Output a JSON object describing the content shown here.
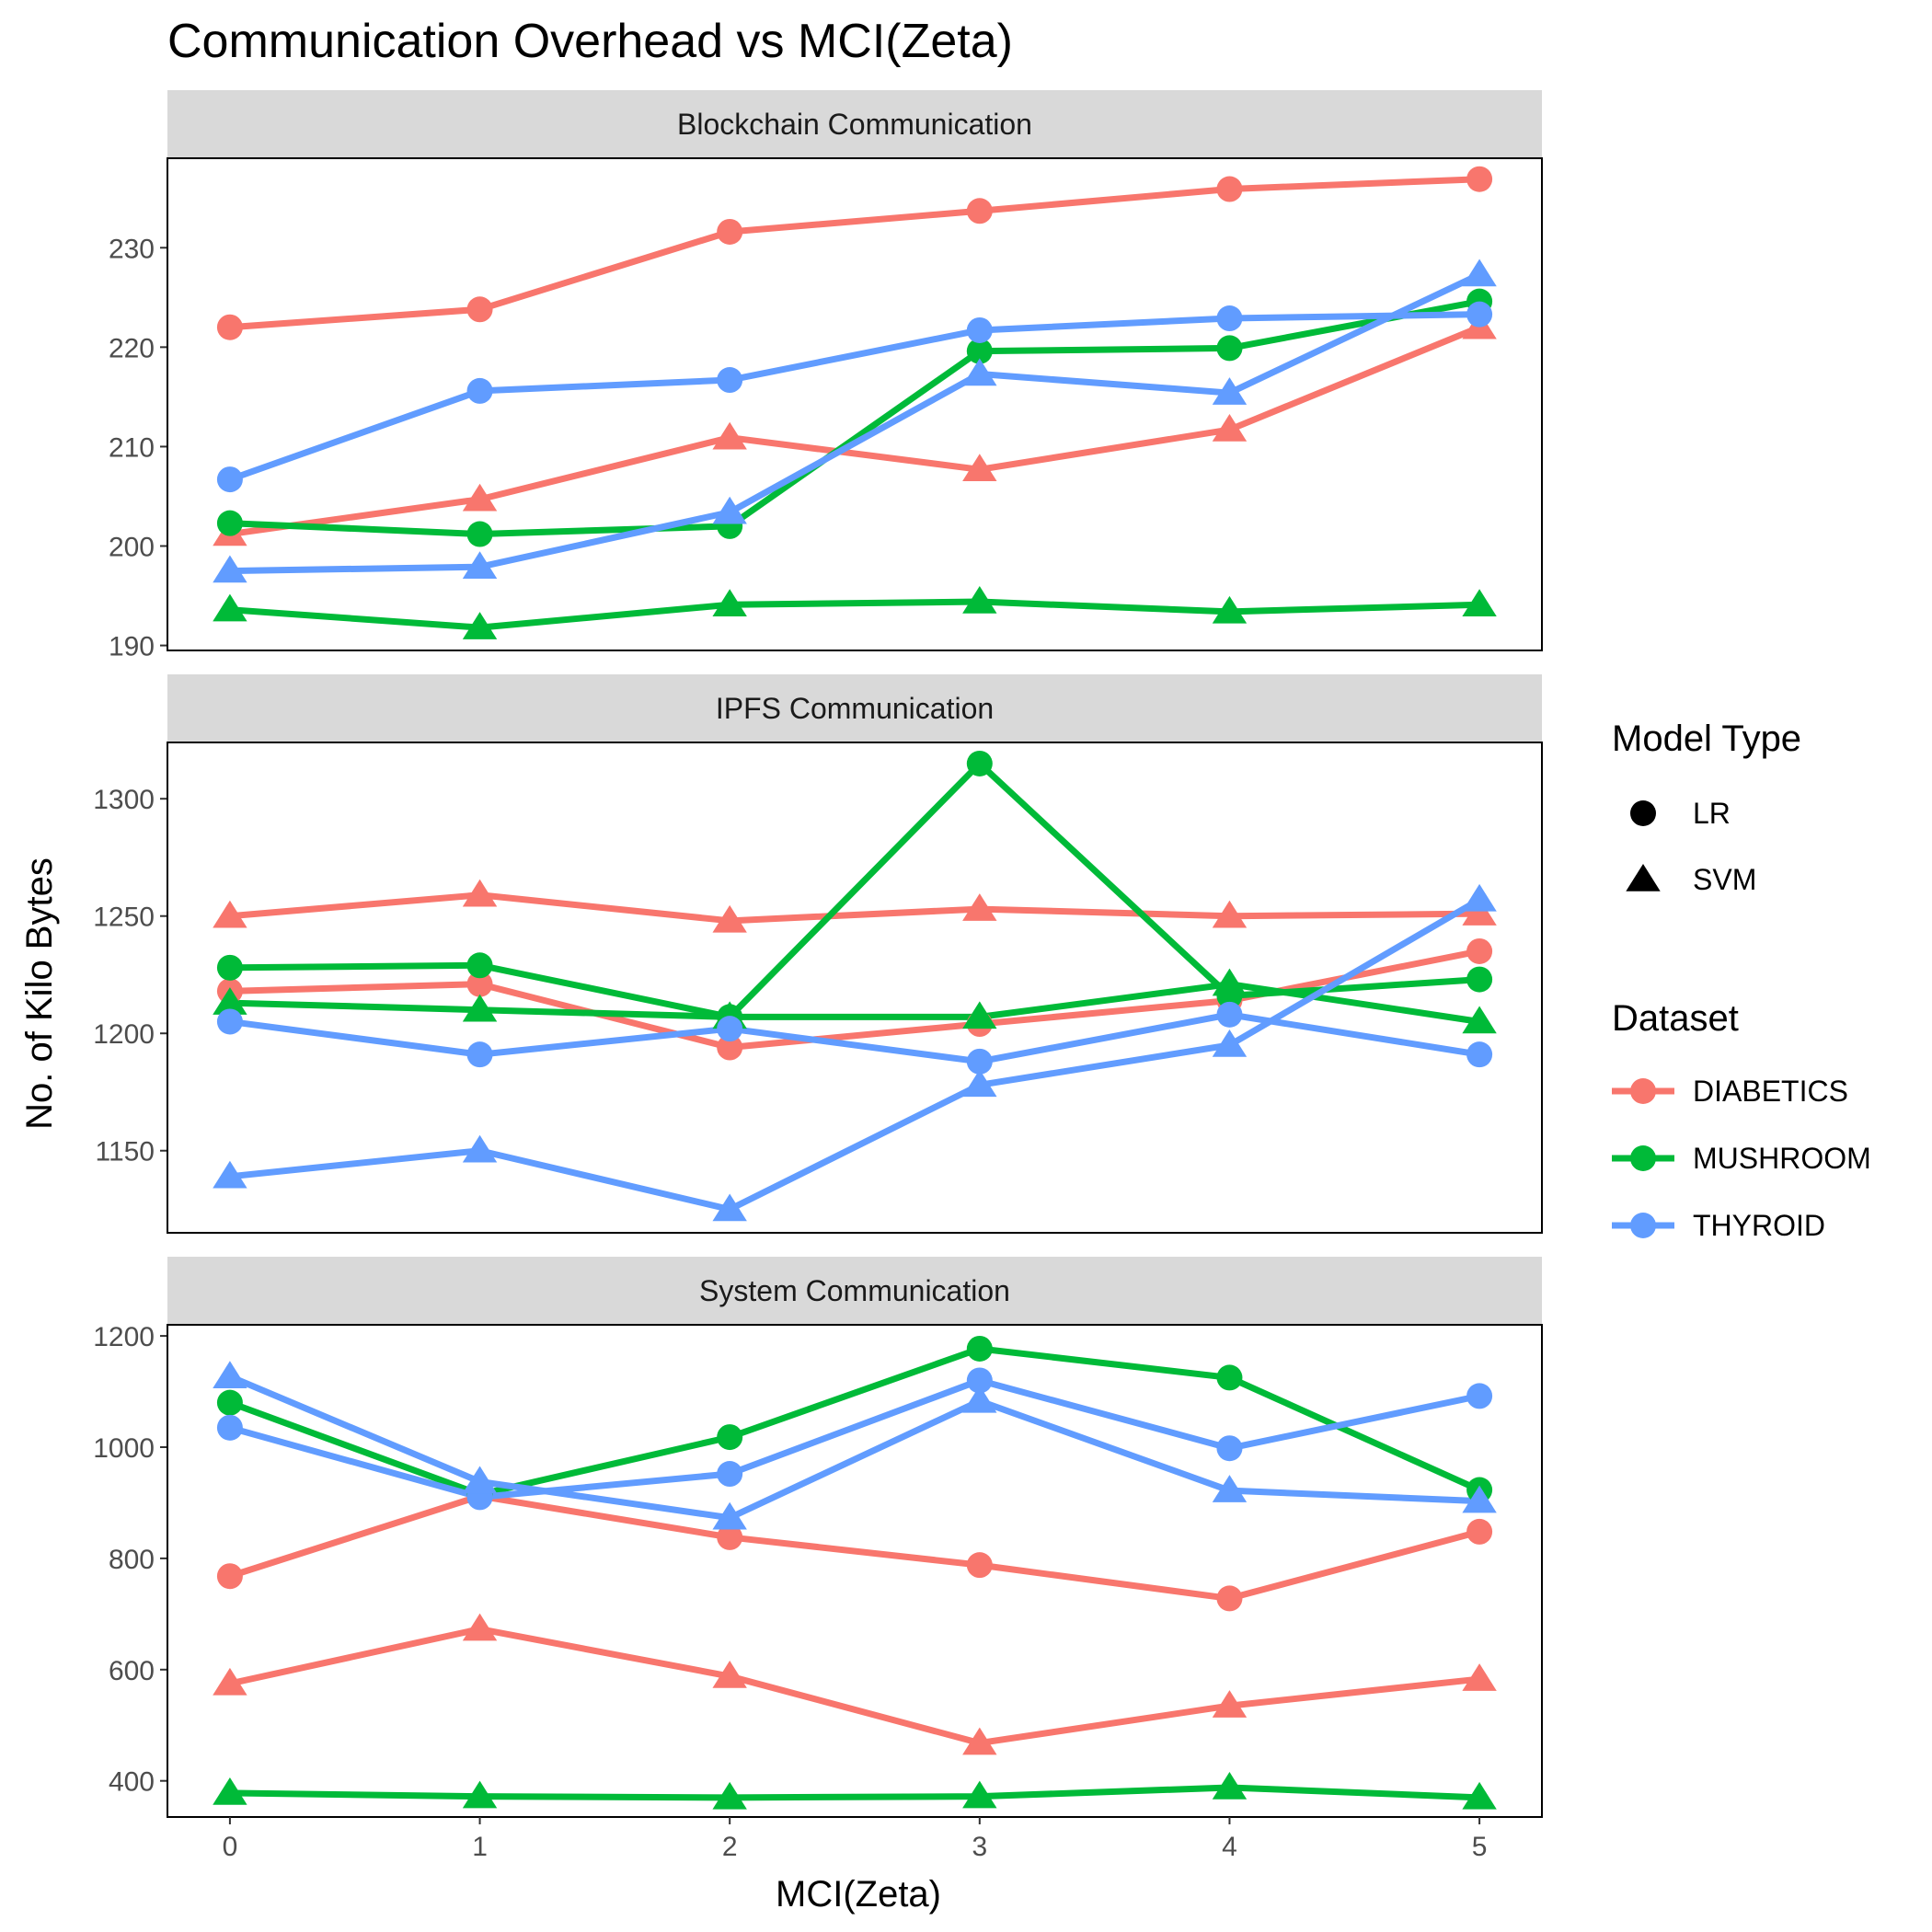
{
  "title": "Communication Overhead vs MCI(Zeta)",
  "xlabel": "MCI(Zeta)",
  "ylabel": "No. of Kilo Bytes",
  "legend": {
    "shape_title": "Model Type",
    "shape_items": [
      {
        "label": "LR",
        "shape": "circle"
      },
      {
        "label": "SVM",
        "shape": "triangle"
      }
    ],
    "color_title": "Dataset",
    "color_items": [
      {
        "label": "DIABETICS",
        "color": "#F8766D"
      },
      {
        "label": "MUSHROOM",
        "color": "#00BA38"
      },
      {
        "label": "THYROID",
        "color": "#619CFF"
      }
    ]
  },
  "colors": {
    "DIABETICS": "#F8766D",
    "MUSHROOM": "#00BA38",
    "THYROID": "#619CFF",
    "strip_bg": "#D9D9D9"
  },
  "chart_data": [
    {
      "type": "line",
      "facet": "Blockchain Communication",
      "x": [
        0,
        1,
        2,
        3,
        4,
        5
      ],
      "xticks": [
        "0",
        "1",
        "2",
        "3",
        "4",
        "5"
      ],
      "ylim": [
        189.5,
        239
      ],
      "yticks": [
        190,
        200,
        210,
        220,
        230
      ],
      "series": [
        {
          "name": "DIABETICS",
          "model": "LR",
          "values": [
            222.0,
            223.8,
            231.6,
            233.7,
            235.9,
            236.9
          ]
        },
        {
          "name": "DIABETICS",
          "model": "SVM",
          "values": [
            201.2,
            204.7,
            210.9,
            207.7,
            211.7,
            222.0
          ]
        },
        {
          "name": "MUSHROOM",
          "model": "LR",
          "values": [
            202.3,
            201.2,
            202.0,
            219.6,
            219.9,
            224.6
          ]
        },
        {
          "name": "MUSHROOM",
          "model": "SVM",
          "values": [
            193.6,
            191.8,
            194.1,
            194.4,
            193.4,
            194.1
          ]
        },
        {
          "name": "THYROID",
          "model": "LR",
          "values": [
            206.7,
            215.6,
            216.7,
            221.7,
            222.9,
            223.3
          ]
        },
        {
          "name": "THYROID",
          "model": "SVM",
          "values": [
            197.5,
            197.9,
            203.4,
            217.3,
            215.4,
            227.3
          ]
        }
      ]
    },
    {
      "type": "line",
      "facet": "IPFS Communication",
      "x": [
        0,
        1,
        2,
        3,
        4,
        5
      ],
      "xticks": [
        "0",
        "1",
        "2",
        "3",
        "4",
        "5"
      ],
      "ylim": [
        1115,
        1324
      ],
      "yticks": [
        1150,
        1200,
        1250,
        1300
      ],
      "series": [
        {
          "name": "DIABETICS",
          "model": "LR",
          "values": [
            1218,
            1221,
            1194,
            1204,
            1214,
            1235
          ]
        },
        {
          "name": "DIABETICS",
          "model": "SVM",
          "values": [
            1250,
            1259,
            1248,
            1253,
            1250,
            1251
          ]
        },
        {
          "name": "MUSHROOM",
          "model": "LR",
          "values": [
            1228,
            1229,
            1207,
            1315,
            1216,
            1223
          ]
        },
        {
          "name": "MUSHROOM",
          "model": "SVM",
          "values": [
            1213,
            1210,
            1207,
            1207,
            1221,
            1205
          ]
        },
        {
          "name": "THYROID",
          "model": "LR",
          "values": [
            1205,
            1191,
            1202,
            1188,
            1208,
            1191
          ]
        },
        {
          "name": "THYROID",
          "model": "SVM",
          "values": [
            1139,
            1150,
            1125,
            1178,
            1195,
            1257
          ]
        }
      ]
    },
    {
      "type": "line",
      "facet": "System Communication",
      "x": [
        0,
        1,
        2,
        3,
        4,
        5
      ],
      "xticks": [
        "0",
        "1",
        "2",
        "3",
        "4",
        "5"
      ],
      "ylim": [
        335,
        1220
      ],
      "yticks": [
        400,
        600,
        800,
        1000,
        1200
      ],
      "series": [
        {
          "name": "DIABETICS",
          "model": "LR",
          "values": [
            768,
            912,
            838,
            788,
            728,
            848
          ]
        },
        {
          "name": "DIABETICS",
          "model": "SVM",
          "values": [
            575,
            673,
            588,
            468,
            535,
            583
          ]
        },
        {
          "name": "MUSHROOM",
          "model": "LR",
          "values": [
            1080,
            915,
            1018,
            1177,
            1125,
            923
          ]
        },
        {
          "name": "MUSHROOM",
          "model": "SVM",
          "values": [
            378,
            372,
            370,
            372,
            388,
            370
          ]
        },
        {
          "name": "THYROID",
          "model": "LR",
          "values": [
            1035,
            910,
            952,
            1120,
            998,
            1092
          ]
        },
        {
          "name": "THYROID",
          "model": "SVM",
          "values": [
            1127,
            938,
            873,
            1083,
            922,
            903
          ]
        }
      ]
    }
  ]
}
